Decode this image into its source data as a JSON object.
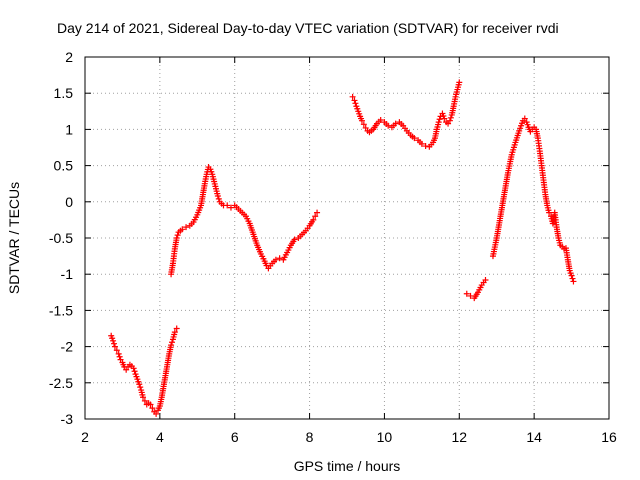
{
  "chart_data": {
    "type": "scatter",
    "title": "Day 214 of 2021, Sidereal Day-to-day VTEC variation (SDTVAR) for receiver rvdi",
    "xlabel": "GPS time / hours",
    "ylabel": "SDTVAR / TECUs",
    "xlim": [
      2,
      16
    ],
    "ylim": [
      -3,
      2
    ],
    "xticks": [
      "2",
      "4",
      "6",
      "8",
      "10",
      "12",
      "14",
      "16"
    ],
    "yticks": [
      "2",
      "1.5",
      "1",
      "0.5",
      "0",
      "-0.5",
      "-1",
      "-1.5",
      "-2",
      "-2.5",
      "-3"
    ],
    "grid": true,
    "marker": "+",
    "color": "#ff0000",
    "series": [
      {
        "x": [
          2.7,
          2.75,
          2.8,
          2.85,
          2.9,
          2.95,
          3.0,
          3.05,
          3.1,
          3.15,
          3.2,
          3.25,
          3.3,
          3.35,
          3.4,
          3.45,
          3.5,
          3.55,
          3.6,
          3.65,
          3.7,
          3.75,
          3.8,
          3.85,
          3.9,
          3.95,
          4.0,
          4.05,
          4.1,
          4.15,
          4.2,
          4.25,
          4.3,
          4.35,
          4.4,
          4.45
        ],
        "y": [
          -1.85,
          -1.92,
          -2.0,
          -2.05,
          -2.1,
          -2.18,
          -2.22,
          -2.28,
          -2.32,
          -2.28,
          -2.25,
          -2.27,
          -2.3,
          -2.38,
          -2.45,
          -2.52,
          -2.6,
          -2.7,
          -2.75,
          -2.8,
          -2.78,
          -2.8,
          -2.85,
          -2.9,
          -2.93,
          -2.88,
          -2.82,
          -2.7,
          -2.55,
          -2.4,
          -2.25,
          -2.1,
          -1.98,
          -1.9,
          -1.8,
          -1.75
        ]
      },
      {
        "x": [
          4.3,
          4.35,
          4.4,
          4.45,
          4.5,
          4.6,
          4.7,
          4.8,
          4.9,
          5.0,
          5.1,
          5.15,
          5.2,
          5.25,
          5.3,
          5.35,
          5.4,
          5.45,
          5.5,
          5.55,
          5.6,
          5.7,
          5.8,
          5.9,
          6.0,
          6.1,
          6.2,
          6.3,
          6.4,
          6.5,
          6.6,
          6.7,
          6.8,
          6.85,
          6.9,
          7.0,
          7.1,
          7.2,
          7.3,
          7.4,
          7.5,
          7.6,
          7.7,
          7.8,
          7.9,
          8.0,
          8.1,
          8.15,
          8.2
        ],
        "y": [
          -1.0,
          -0.85,
          -0.65,
          -0.5,
          -0.42,
          -0.38,
          -0.35,
          -0.33,
          -0.28,
          -0.18,
          -0.05,
          0.1,
          0.25,
          0.38,
          0.48,
          0.45,
          0.38,
          0.28,
          0.18,
          0.08,
          0.0,
          -0.05,
          -0.05,
          -0.08,
          -0.05,
          -0.1,
          -0.15,
          -0.2,
          -0.3,
          -0.45,
          -0.6,
          -0.72,
          -0.82,
          -0.88,
          -0.92,
          -0.85,
          -0.8,
          -0.78,
          -0.8,
          -0.7,
          -0.6,
          -0.52,
          -0.5,
          -0.45,
          -0.4,
          -0.33,
          -0.25,
          -0.2,
          -0.15
        ]
      },
      {
        "x": [
          9.15,
          9.2,
          9.25,
          9.3,
          9.35,
          9.4,
          9.45,
          9.5,
          9.55,
          9.6,
          9.7,
          9.8,
          9.9,
          10.0,
          10.1,
          10.2,
          10.3,
          10.4,
          10.5,
          10.6,
          10.7,
          10.8,
          10.9,
          11.0,
          11.1,
          11.2,
          11.3,
          11.35,
          11.4,
          11.45,
          11.5,
          11.55,
          11.6,
          11.65,
          11.7,
          11.75,
          11.8,
          11.85,
          11.9,
          11.95,
          12.0
        ],
        "y": [
          1.45,
          1.4,
          1.32,
          1.25,
          1.18,
          1.12,
          1.07,
          1.02,
          0.98,
          0.96,
          1.0,
          1.08,
          1.13,
          1.1,
          1.05,
          1.03,
          1.08,
          1.1,
          1.05,
          0.98,
          0.92,
          0.88,
          0.85,
          0.8,
          0.77,
          0.76,
          0.82,
          0.88,
          1.0,
          1.1,
          1.18,
          1.22,
          1.15,
          1.1,
          1.08,
          1.12,
          1.2,
          1.32,
          1.45,
          1.55,
          1.65
        ]
      },
      {
        "x": [
          12.2,
          12.3,
          12.4,
          12.5,
          12.6,
          12.7
        ],
        "y": [
          -1.27,
          -1.3,
          -1.33,
          -1.25,
          -1.15,
          -1.08
        ]
      },
      {
        "x": [
          12.9,
          13.0,
          13.1,
          13.2,
          13.3,
          13.4,
          13.5,
          13.6,
          13.65,
          13.7,
          13.75,
          13.8,
          13.85,
          13.9,
          13.95,
          14.0,
          14.05,
          14.1,
          14.15,
          14.2,
          14.25,
          14.3,
          14.35,
          14.4,
          14.45,
          14.5,
          14.55,
          14.6,
          14.65,
          14.7,
          14.75,
          14.8,
          14.85,
          14.9,
          14.95,
          15.0,
          15.05
        ],
        "y": [
          -0.75,
          -0.5,
          -0.2,
          0.1,
          0.4,
          0.65,
          0.82,
          0.98,
          1.05,
          1.12,
          1.15,
          1.1,
          1.03,
          0.97,
          1.0,
          1.03,
          1.0,
          0.88,
          0.7,
          0.5,
          0.3,
          0.1,
          -0.05,
          -0.15,
          -0.2,
          -0.3,
          -0.15,
          -0.35,
          -0.5,
          -0.6,
          -0.62,
          -0.65,
          -0.64,
          -0.8,
          -0.95,
          -1.02,
          -1.1
        ]
      }
    ]
  }
}
